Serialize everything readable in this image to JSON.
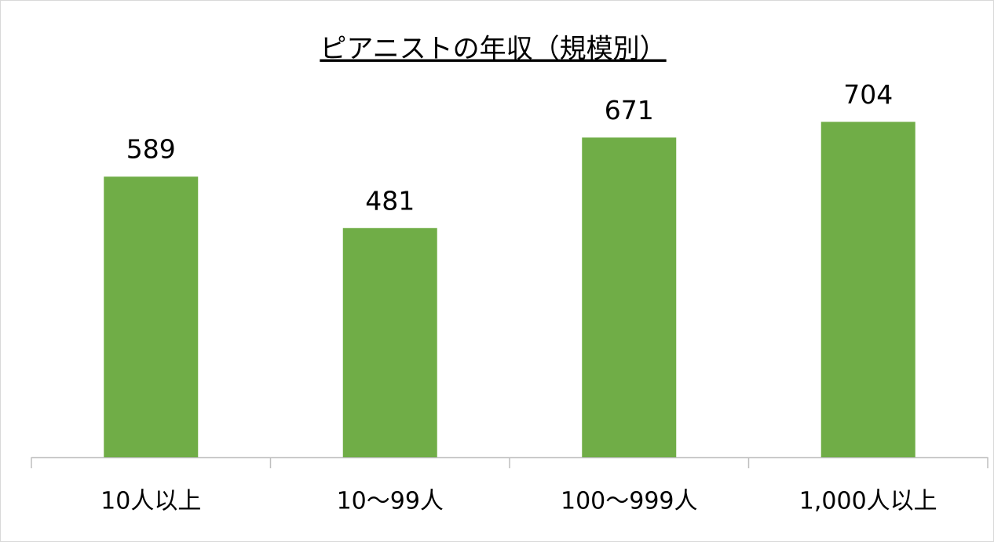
{
  "chart_data": {
    "type": "bar",
    "title": "ピアニストの年収（規模別）",
    "categories": [
      "10人以上",
      "10～99人",
      "100～999人",
      "1,000人以上"
    ],
    "values": [
      589,
      481,
      671,
      704
    ],
    "color": "#70ad47",
    "ylim": [
      0,
      800
    ]
  }
}
